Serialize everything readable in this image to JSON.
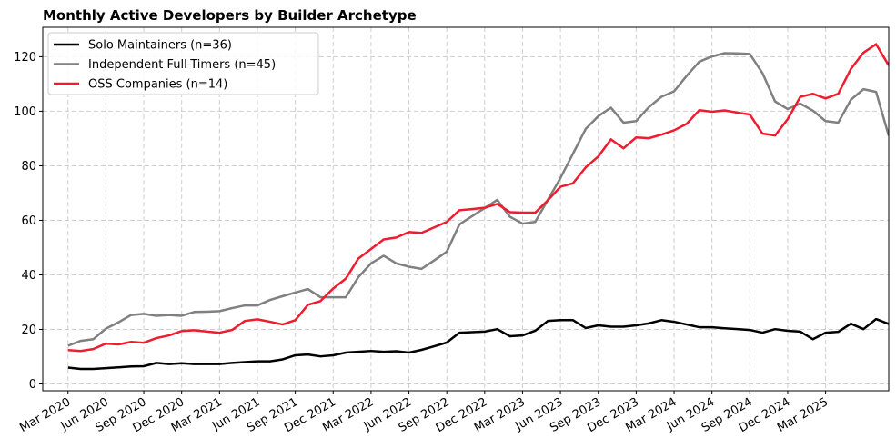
{
  "chart_data": {
    "type": "line",
    "title": "Monthly Active Developers by Builder Archetype",
    "x": [
      "2020-03",
      "2020-04",
      "2020-05",
      "2020-06",
      "2020-07",
      "2020-08",
      "2020-09",
      "2020-10",
      "2020-11",
      "2020-12",
      "2021-01",
      "2021-02",
      "2021-03",
      "2021-04",
      "2021-05",
      "2021-06",
      "2021-07",
      "2021-08",
      "2021-09",
      "2021-10",
      "2021-11",
      "2021-12",
      "2022-01",
      "2022-02",
      "2022-03",
      "2022-04",
      "2022-05",
      "2022-06",
      "2022-07",
      "2022-08",
      "2022-09",
      "2022-10",
      "2022-11",
      "2022-12",
      "2023-01",
      "2023-02",
      "2023-03",
      "2023-04",
      "2023-05",
      "2023-06",
      "2023-07",
      "2023-08",
      "2023-09",
      "2023-10",
      "2023-11",
      "2023-12",
      "2024-01",
      "2024-02",
      "2024-03",
      "2024-04",
      "2024-05",
      "2024-06",
      "2024-07",
      "2024-08",
      "2024-09",
      "2024-10",
      "2024-11",
      "2024-12",
      "2025-01",
      "2025-02",
      "2025-03",
      "2025-04",
      "2025-05",
      "2025-06",
      "2025-07",
      "2025-08"
    ],
    "series": [
      {
        "name": "Solo Maintainers (n=36)",
        "color": "#000000",
        "values": [
          6,
          5.5,
          5.5,
          5.8,
          6.1,
          6.4,
          6.5,
          7.7,
          7.3,
          7.6,
          7.3,
          7.3,
          7.3,
          7.7,
          8,
          8.3,
          8.3,
          9,
          10.5,
          10.8,
          10.1,
          10.5,
          11.5,
          11.8,
          12.1,
          11.8,
          12,
          11.5,
          12.5,
          13.8,
          15.2,
          18.8,
          19.0,
          19.2,
          20.1,
          17.5,
          17.8,
          19.5,
          23.1,
          23.4,
          23.4,
          20.5,
          21.5,
          21,
          21,
          21.5,
          22.2,
          23.4,
          22.8,
          21.8,
          20.8,
          20.8,
          20.4,
          20.1,
          19.8,
          18.8,
          20.1,
          19.5,
          19.2,
          16.4,
          18.8,
          19.1,
          22.1,
          20.1,
          23.8,
          22
        ]
      },
      {
        "name": "Independent Full-Timers (n=45)",
        "color": "#808080",
        "values": [
          14,
          15.8,
          16.4,
          20.3,
          22.6,
          25.3,
          25.7,
          25,
          25.3,
          25,
          26.4,
          26.5,
          26.7,
          27.8,
          28.8,
          28.8,
          30.8,
          32.2,
          33.5,
          34.8,
          31.8,
          31.8,
          31.8,
          39.2,
          44.2,
          47,
          44.2,
          43,
          42.2,
          45.3,
          48.5,
          58.5,
          61.5,
          64.5,
          67.5,
          61.3,
          58.8,
          59.4,
          67.5,
          75.5,
          84.5,
          93.5,
          98.2,
          101.3,
          95.8,
          96.4,
          101.5,
          105.3,
          107.3,
          113,
          118.2,
          120.1,
          121.3,
          121.2,
          121,
          114,
          103.6,
          100.8,
          102.8,
          100.2,
          96.4,
          95.8,
          104.2,
          108.1,
          107.1,
          91
        ]
      },
      {
        "name": "OSS Companies (n=14)",
        "color": "#ee1c2e",
        "values": [
          12.4,
          12.1,
          12.8,
          14.8,
          14.5,
          15.4,
          15.1,
          16.8,
          17.8,
          19.4,
          19.7,
          19.2,
          18.8,
          19.8,
          23.1,
          23.7,
          22.8,
          21.8,
          23.4,
          29,
          30.4,
          35,
          38.6,
          46,
          49.5,
          53,
          53.7,
          55.7,
          55.4,
          57.4,
          59.4,
          63.7,
          64.1,
          64.6,
          66,
          63,
          62.8,
          62.8,
          67.3,
          72.3,
          73.6,
          79.4,
          83.4,
          89.7,
          86.4,
          90.4,
          90.1,
          91.4,
          93,
          95.4,
          100.4,
          99.8,
          100.3,
          99.5,
          98.8,
          91.8,
          91.1,
          97.1,
          105.3,
          106.4,
          104.7,
          106.4,
          115.5,
          121.5,
          124.6,
          116.8
        ]
      }
    ],
    "xlim": [
      "2020-01",
      "2025-08"
    ],
    "xticks": [
      {
        "value": "2020-03",
        "label": "Mar 2020"
      },
      {
        "value": "2020-06",
        "label": "Jun 2020"
      },
      {
        "value": "2020-09",
        "label": "Sep 2020"
      },
      {
        "value": "2020-12",
        "label": "Dec 2020"
      },
      {
        "value": "2021-03",
        "label": "Mar 2021"
      },
      {
        "value": "2021-06",
        "label": "Jun 2021"
      },
      {
        "value": "2021-09",
        "label": "Sep 2021"
      },
      {
        "value": "2021-12",
        "label": "Dec 2021"
      },
      {
        "value": "2022-03",
        "label": "Mar 2022"
      },
      {
        "value": "2022-06",
        "label": "Jun 2022"
      },
      {
        "value": "2022-09",
        "label": "Sep 2022"
      },
      {
        "value": "2022-12",
        "label": "Dec 2022"
      },
      {
        "value": "2023-03",
        "label": "Mar 2023"
      },
      {
        "value": "2023-06",
        "label": "Jun 2023"
      },
      {
        "value": "2023-09",
        "label": "Sep 2023"
      },
      {
        "value": "2023-12",
        "label": "Dec 2023"
      },
      {
        "value": "2024-03",
        "label": "Mar 2024"
      },
      {
        "value": "2024-06",
        "label": "Jun 2024"
      },
      {
        "value": "2024-09",
        "label": "Sep 2024"
      },
      {
        "value": "2024-12",
        "label": "Dec 2024"
      },
      {
        "value": "2025-03",
        "label": "Mar 2025"
      }
    ],
    "ylim": [
      -2.5,
      130.8
    ],
    "yticks": [
      0,
      20,
      40,
      60,
      80,
      100,
      120
    ],
    "grid": true,
    "legend": "upper left"
  }
}
